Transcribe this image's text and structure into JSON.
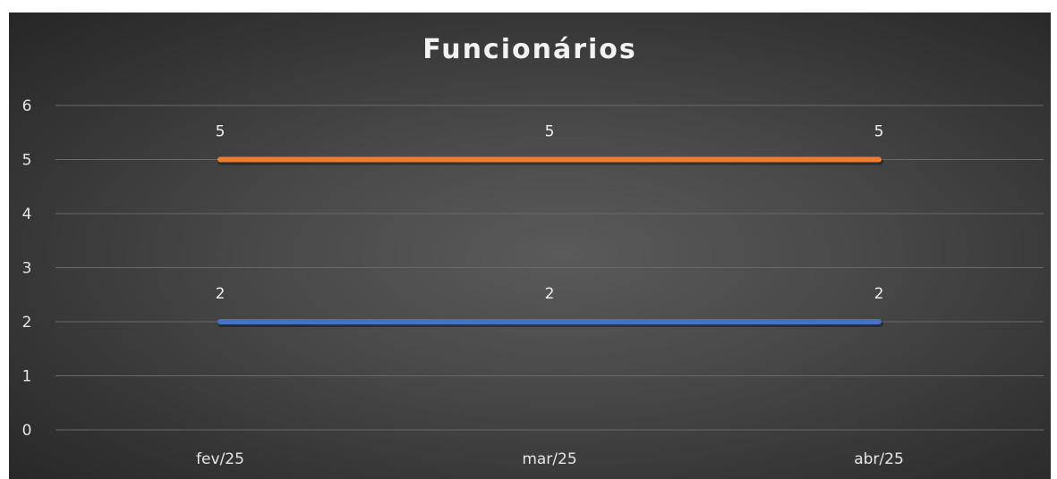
{
  "chart_data": {
    "type": "line",
    "title": "Funcionários",
    "categories": [
      "fev/25",
      "mar/25",
      "abr/25"
    ],
    "series": [
      {
        "values": [
          5,
          5,
          5
        ],
        "color": "#ED7D31"
      },
      {
        "values": [
          2,
          2,
          2
        ],
        "color": "#4472C4"
      }
    ],
    "ylim": [
      0,
      6
    ],
    "yticks": [
      0,
      1,
      2,
      3,
      4,
      5,
      6
    ],
    "grid": true,
    "data_labels": true,
    "legend": "none"
  }
}
